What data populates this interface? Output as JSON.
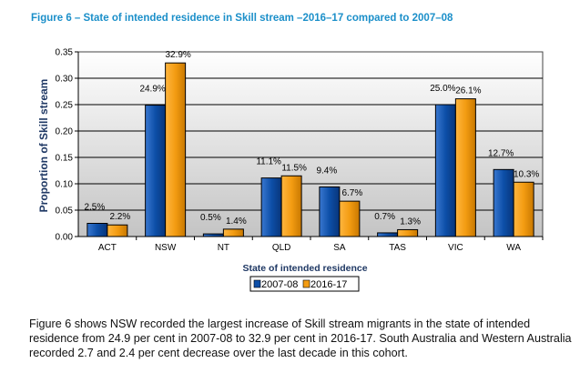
{
  "figure_title": "Figure 6 – State of intended residence in Skill stream –2016–17 compared to 2007–08",
  "chart_data": {
    "type": "bar",
    "title": "",
    "xlabel": "State of intended residence",
    "ylabel": "Proportion of Skill stream",
    "categories": [
      "ACT",
      "NSW",
      "NT",
      "QLD",
      "SA",
      "TAS",
      "VIC",
      "WA"
    ],
    "series": [
      {
        "name": "2007-08",
        "values": [
          0.025,
          0.249,
          0.005,
          0.111,
          0.094,
          0.007,
          0.25,
          0.127
        ],
        "labels": [
          "2.5%",
          "24.9%",
          "0.5%",
          "11.1%",
          "9.4%",
          "0.7%",
          "25.0%",
          "12.7%"
        ],
        "color": "#0d4fa8"
      },
      {
        "name": "2016-17",
        "values": [
          0.022,
          0.329,
          0.014,
          0.115,
          0.067,
          0.013,
          0.261,
          0.103
        ],
        "labels": [
          "2.2%",
          "32.9%",
          "1.4%",
          "11.5%",
          "6.7%",
          "1.3%",
          "26.1%",
          "10.3%"
        ],
        "color": "#f39c12"
      }
    ],
    "ylim": [
      0,
      0.35
    ],
    "yticks": [
      "0.00",
      "0.05",
      "0.10",
      "0.15",
      "0.20",
      "0.25",
      "0.30",
      "0.35"
    ],
    "grid": true,
    "legend_position": "bottom"
  },
  "paragraph": "Figure 6 shows NSW recorded the largest increase of Skill stream migrants in the state of intended residence from 24.9 per cent in 2007-08 to 32.9 per cent in 2016-17.  South Australia and Western Australia recorded 2.7 and 2.4 per cent decrease over the last decade in this cohort."
}
